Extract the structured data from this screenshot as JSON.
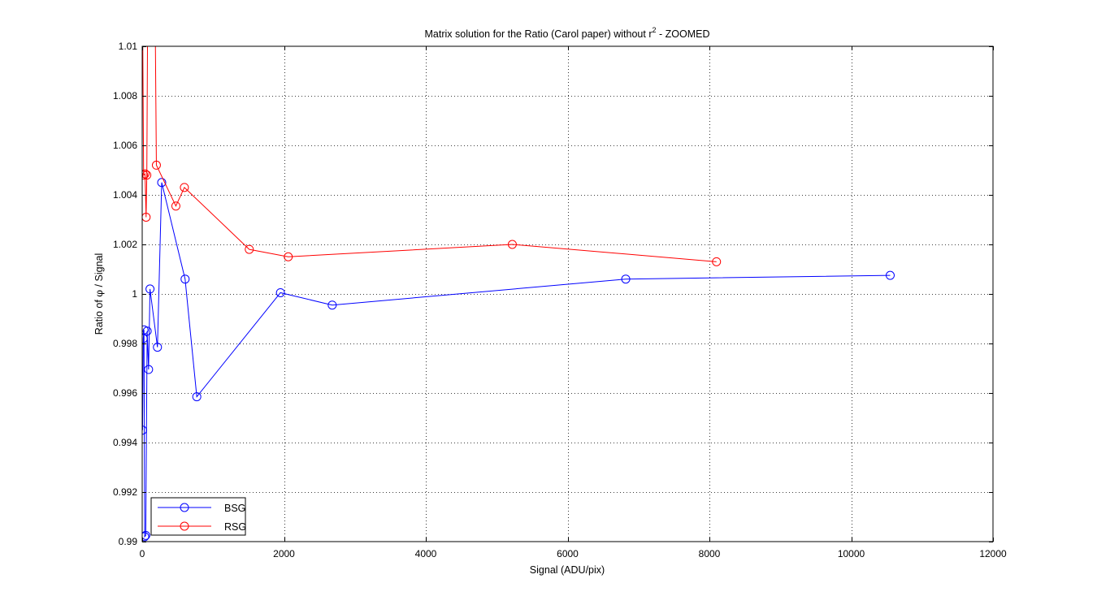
{
  "chart_data": {
    "type": "line",
    "title_prefix": "Matrix solution for the Ratio (Carol paper) without r",
    "title_superscript": "2",
    "title_suffix": " - ZOOMED",
    "xlabel": "Signal (ADU/pix)",
    "ylabel_prefix": "Ratio of ",
    "ylabel_symbol": "φ",
    "ylabel_suffix": " / Signal",
    "xlim": [
      0,
      12000
    ],
    "ylim": [
      0.99,
      1.01
    ],
    "xticks": [
      0,
      2000,
      4000,
      6000,
      8000,
      10000,
      12000
    ],
    "xtick_labels": [
      "0",
      "2000",
      "4000",
      "6000",
      "8000",
      "10000",
      "12000"
    ],
    "yticks": [
      0.99,
      0.992,
      0.994,
      0.996,
      0.998,
      1.0,
      1.002,
      1.004,
      1.006,
      1.008,
      1.01
    ],
    "ytick_labels": [
      "0.99",
      "0.992",
      "0.994",
      "0.996",
      "0.998",
      "1",
      "1.002",
      "1.004",
      "1.006",
      "1.008",
      "1.01"
    ],
    "grid": true,
    "legend_position": "bottom-left",
    "series": [
      {
        "name": "BSG",
        "color": "#0000ff",
        "marker": "circle",
        "x": [
          5,
          15,
          25,
          35,
          50,
          70,
          90,
          110,
          215,
          275,
          605,
          770,
          1950,
          2680,
          6820,
          10550
        ],
        "y": [
          0.9945,
          0.9982,
          0.99855,
          0.9902,
          0.99025,
          0.9985,
          0.99695,
          1.0002,
          0.99785,
          1.0045,
          1.0006,
          0.99585,
          1.00005,
          0.99955,
          1.0006,
          1.00075
        ]
      },
      {
        "name": "RSG",
        "color": "#ff0000",
        "marker": "circle",
        "x": [
          5,
          20,
          40,
          55,
          65,
          75,
          100,
          140,
          185,
          200,
          475,
          595,
          1510,
          2060,
          5220,
          8100
        ],
        "y": [
          1.0115,
          1.0048,
          1.00485,
          1.0031,
          1.0048,
          1.0102,
          1.0112,
          1.0112,
          1.0105,
          1.0052,
          1.00355,
          1.0043,
          1.0018,
          1.0015,
          1.002,
          1.0013
        ]
      }
    ]
  }
}
